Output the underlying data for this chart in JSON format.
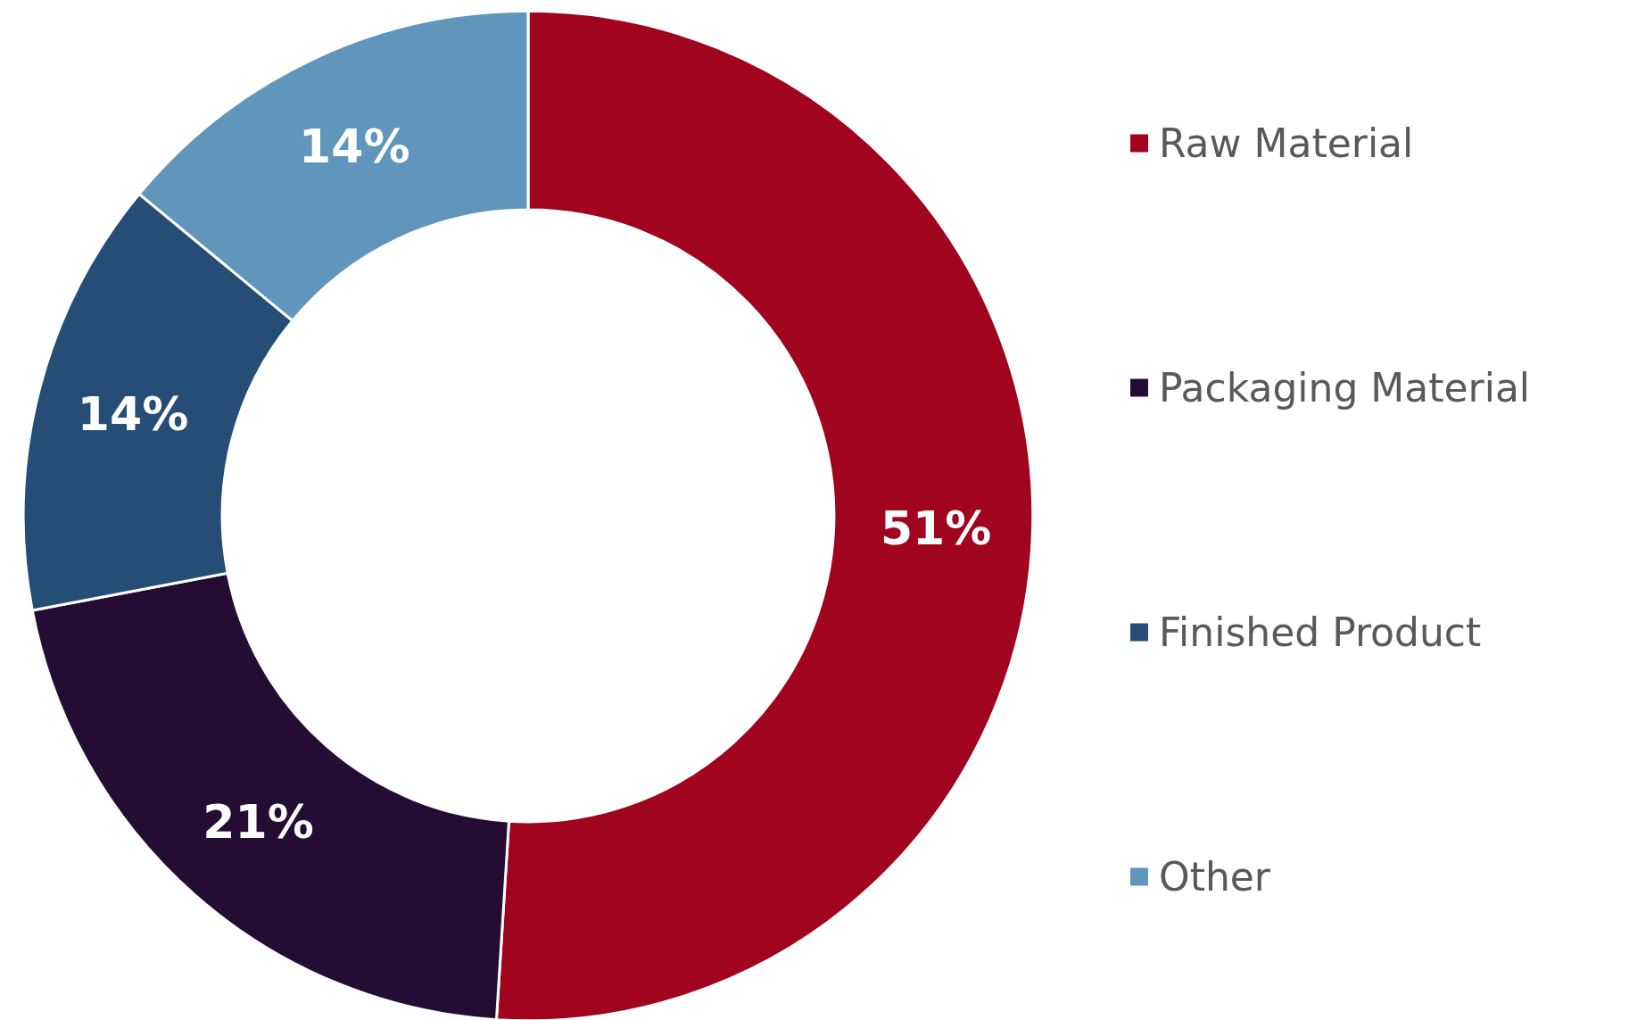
{
  "chart_data": {
    "type": "donut",
    "categories": [
      "Raw Material",
      "Packaging Material",
      "Finished Product",
      "Other"
    ],
    "values": [
      51,
      21,
      14,
      14
    ],
    "value_labels": [
      "51%",
      "21%",
      "14%",
      "14%"
    ],
    "colors": [
      "#a0041e",
      "#240c33",
      "#264d75",
      "#6096bb"
    ],
    "legend": "right"
  }
}
